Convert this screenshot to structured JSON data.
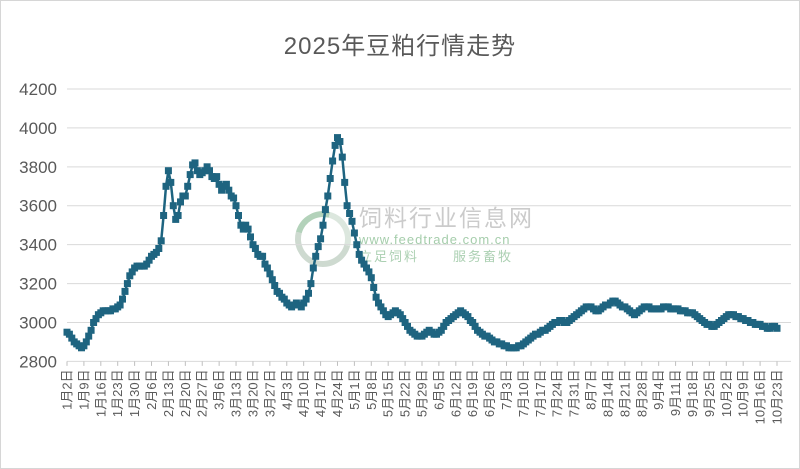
{
  "title": "2025年豆粕行情走势",
  "watermark": {
    "site_name": "饲料行业信息网",
    "site_url": "www.feedtrade.com.cn",
    "slogan_left": "立足饲料",
    "slogan_right": "服务畜牧"
  },
  "chart_data": {
    "type": "line",
    "title": "2025年豆粕行情走势",
    "legend": "none",
    "grid": "on",
    "marker": "square",
    "series_color": "#1e6480",
    "grid_color": "#d9d9d9",
    "tick_color": "#bfbfbf",
    "label_color": "#595959",
    "ylim": [
      2800,
      4200
    ],
    "y_ticks": [
      4200,
      4000,
      3800,
      3600,
      3400,
      3200,
      3000,
      2800
    ],
    "x_label_rotation": -90,
    "x_tick_every": 7,
    "x_tick_labels": [
      "1月2日",
      "1月9日",
      "1月16日",
      "1月23日",
      "1月30日",
      "2月6日",
      "2月13日",
      "2月20日",
      "2月27日",
      "3月6日",
      "3月13日",
      "3月20日",
      "3月27日",
      "4月3日",
      "4月10日",
      "4月17日",
      "4月24日",
      "5月1日",
      "5月8日",
      "5月15日",
      "5月22日",
      "5月29日",
      "6月5日",
      "6月12日",
      "6月19日",
      "6月26日",
      "7月3日",
      "7月10日",
      "7月17日",
      "7月24日",
      "7月31日",
      "8月7日",
      "8月14日",
      "8月21日",
      "8月28日",
      "9月4日",
      "9月11日",
      "9月18日",
      "9月25日",
      "10月2日",
      "10月9日",
      "10月16日",
      "10月23日"
    ],
    "values": [
      2950,
      2940,
      2920,
      2900,
      2890,
      2880,
      2870,
      2880,
      2900,
      2930,
      2960,
      3000,
      3020,
      3040,
      3050,
      3060,
      3060,
      3060,
      3060,
      3070,
      3070,
      3080,
      3090,
      3120,
      3160,
      3200,
      3240,
      3260,
      3280,
      3290,
      3290,
      3290,
      3290,
      3300,
      3320,
      3340,
      3350,
      3360,
      3380,
      3420,
      3550,
      3700,
      3780,
      3720,
      3600,
      3530,
      3550,
      3620,
      3650,
      3650,
      3700,
      3760,
      3810,
      3820,
      3780,
      3760,
      3770,
      3780,
      3800,
      3780,
      3750,
      3740,
      3750,
      3710,
      3680,
      3700,
      3710,
      3680,
      3650,
      3640,
      3600,
      3550,
      3500,
      3480,
      3500,
      3480,
      3440,
      3400,
      3380,
      3350,
      3340,
      3340,
      3300,
      3280,
      3250,
      3220,
      3190,
      3160,
      3150,
      3130,
      3120,
      3100,
      3090,
      3080,
      3090,
      3100,
      3090,
      3080,
      3100,
      3120,
      3150,
      3200,
      3280,
      3340,
      3390,
      3430,
      3500,
      3580,
      3650,
      3740,
      3830,
      3910,
      3950,
      3930,
      3850,
      3720,
      3600,
      3560,
      3520,
      3460,
      3400,
      3350,
      3320,
      3300,
      3280,
      3260,
      3230,
      3180,
      3130,
      3100,
      3080,
      3060,
      3040,
      3030,
      3040,
      3050,
      3060,
      3050,
      3040,
      3020,
      3000,
      2980,
      2960,
      2950,
      2940,
      2930,
      2930,
      2930,
      2940,
      2950,
      2960,
      2950,
      2940,
      2940,
      2950,
      2960,
      2980,
      3000,
      3010,
      3020,
      3030,
      3040,
      3050,
      3060,
      3050,
      3040,
      3030,
      3010,
      3000,
      2980,
      2960,
      2950,
      2940,
      2930,
      2930,
      2920,
      2910,
      2900,
      2900,
      2890,
      2890,
      2880,
      2880,
      2870,
      2870,
      2870,
      2870,
      2880,
      2880,
      2890,
      2900,
      2910,
      2920,
      2930,
      2940,
      2940,
      2950,
      2960,
      2960,
      2970,
      2980,
      2990,
      3000,
      3000,
      3010,
      3010,
      3000,
      3000,
      3010,
      3020,
      3030,
      3040,
      3050,
      3060,
      3070,
      3080,
      3080,
      3080,
      3070,
      3060,
      3060,
      3070,
      3080,
      3090,
      3090,
      3100,
      3110,
      3110,
      3100,
      3090,
      3080,
      3080,
      3070,
      3060,
      3050,
      3040,
      3050,
      3060,
      3070,
      3080,
      3080,
      3080,
      3070,
      3070,
      3070,
      3070,
      3070,
      3080,
      3080,
      3080,
      3070,
      3070,
      3070,
      3070,
      3060,
      3060,
      3060,
      3050,
      3050,
      3050,
      3040,
      3030,
      3020,
      3010,
      3000,
      2990,
      2990,
      2980,
      2980,
      2990,
      3000,
      3010,
      3020,
      3030,
      3040,
      3040,
      3040,
      3030,
      3030,
      3020,
      3020,
      3010,
      3010,
      3000,
      3000,
      2990,
      2990,
      2990,
      2980,
      2980,
      2970,
      2970,
      2980,
      2980,
      2970
    ]
  }
}
